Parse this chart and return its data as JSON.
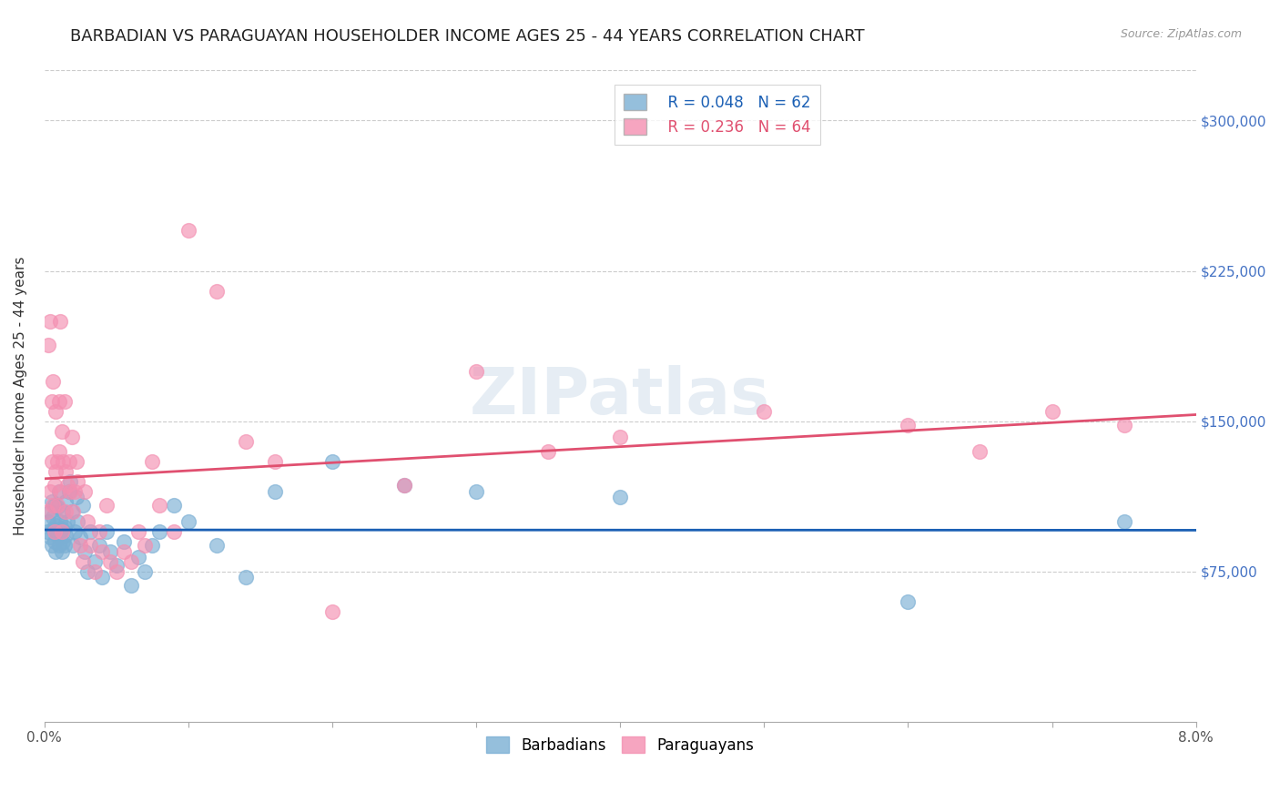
{
  "title": "BARBADIAN VS PARAGUAYAN HOUSEHOLDER INCOME AGES 25 - 44 YEARS CORRELATION CHART",
  "source": "Source: ZipAtlas.com",
  "ylabel": "Householder Income Ages 25 - 44 years",
  "yticks": [
    0,
    75000,
    150000,
    225000,
    300000
  ],
  "ytick_labels": [
    "",
    "$75,000",
    "$150,000",
    "$225,000",
    "$300,000"
  ],
  "xmin": 0.0,
  "xmax": 0.08,
  "ymin": 0,
  "ymax": 325000,
  "barbadian_color": "#7bafd4",
  "paraguayan_color": "#f48fb1",
  "barbadian_line_color": "#1a5fb4",
  "paraguayan_line_color": "#e05070",
  "legend_r_barbadian": "R = 0.048",
  "legend_n_barbadian": "N = 62",
  "legend_r_paraguayan": "R = 0.236",
  "legend_n_paraguayan": "N = 64",
  "watermark": "ZIPatlas",
  "title_fontsize": 13,
  "axis_label_fontsize": 11,
  "tick_fontsize": 11,
  "legend_fontsize": 12,
  "barbadian_x": [
    0.0002,
    0.0003,
    0.0004,
    0.0004,
    0.0005,
    0.0005,
    0.0006,
    0.0006,
    0.0007,
    0.0007,
    0.0008,
    0.0008,
    0.0009,
    0.0009,
    0.001,
    0.001,
    0.0011,
    0.0011,
    0.0012,
    0.0012,
    0.0013,
    0.0013,
    0.0014,
    0.0014,
    0.0015,
    0.0015,
    0.0016,
    0.0017,
    0.0018,
    0.0019,
    0.002,
    0.0021,
    0.0022,
    0.0023,
    0.0025,
    0.0027,
    0.0028,
    0.003,
    0.0032,
    0.0035,
    0.0038,
    0.004,
    0.0043,
    0.0046,
    0.005,
    0.0055,
    0.006,
    0.0065,
    0.007,
    0.0075,
    0.008,
    0.009,
    0.01,
    0.012,
    0.014,
    0.016,
    0.02,
    0.025,
    0.03,
    0.04,
    0.06,
    0.075
  ],
  "barbadian_y": [
    95000,
    100000,
    92000,
    105000,
    88000,
    110000,
    96000,
    102000,
    90000,
    108000,
    85000,
    98000,
    93000,
    107000,
    88000,
    115000,
    92000,
    100000,
    85000,
    96000,
    90000,
    105000,
    88000,
    97000,
    93000,
    110000,
    100000,
    115000,
    120000,
    105000,
    88000,
    95000,
    112000,
    100000,
    92000,
    108000,
    85000,
    75000,
    95000,
    80000,
    88000,
    72000,
    95000,
    85000,
    78000,
    90000,
    68000,
    82000,
    75000,
    88000,
    95000,
    108000,
    100000,
    88000,
    72000,
    115000,
    130000,
    118000,
    115000,
    112000,
    60000,
    100000
  ],
  "paraguayan_x": [
    0.0002,
    0.0003,
    0.0004,
    0.0004,
    0.0005,
    0.0005,
    0.0006,
    0.0006,
    0.0007,
    0.0007,
    0.0008,
    0.0008,
    0.0009,
    0.0009,
    0.001,
    0.001,
    0.0011,
    0.0011,
    0.0012,
    0.0012,
    0.0013,
    0.0014,
    0.0015,
    0.0015,
    0.0016,
    0.0017,
    0.0018,
    0.0019,
    0.002,
    0.0021,
    0.0022,
    0.0023,
    0.0025,
    0.0027,
    0.0028,
    0.003,
    0.0032,
    0.0035,
    0.0038,
    0.004,
    0.0043,
    0.0046,
    0.005,
    0.0055,
    0.006,
    0.0065,
    0.007,
    0.0075,
    0.008,
    0.009,
    0.01,
    0.012,
    0.014,
    0.016,
    0.02,
    0.025,
    0.03,
    0.035,
    0.04,
    0.05,
    0.06,
    0.065,
    0.07,
    0.075
  ],
  "paraguayan_y": [
    105000,
    188000,
    115000,
    200000,
    160000,
    130000,
    108000,
    170000,
    118000,
    95000,
    155000,
    125000,
    108000,
    130000,
    160000,
    135000,
    115000,
    200000,
    145000,
    95000,
    130000,
    160000,
    105000,
    125000,
    118000,
    130000,
    115000,
    142000,
    105000,
    115000,
    130000,
    120000,
    88000,
    80000,
    115000,
    100000,
    88000,
    75000,
    95000,
    85000,
    108000,
    80000,
    75000,
    85000,
    80000,
    95000,
    88000,
    130000,
    108000,
    95000,
    245000,
    215000,
    140000,
    130000,
    55000,
    118000,
    175000,
    135000,
    142000,
    155000,
    148000,
    135000,
    155000,
    148000
  ]
}
